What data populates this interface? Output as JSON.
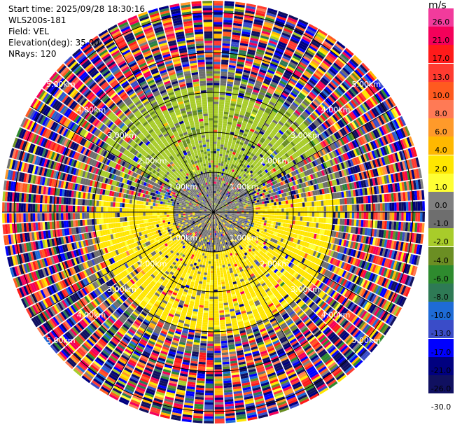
{
  "header": {
    "start_time": "Start time: 2025/09/28 18:30:16",
    "device": "WLS200s-181",
    "field": "Field: VEL",
    "elevation": "Elevation(deg): 35.00",
    "nrays": "NRays: 120"
  },
  "colorbar": {
    "unit": "m/s",
    "labels": [
      "26.0",
      "21.0",
      "17.0",
      "13.0",
      "10.0",
      "8.0",
      "6.0",
      "4.0",
      "2.0",
      "1.0",
      "0.0",
      "-1.0",
      "-2.0",
      "-4.0",
      "-6.0",
      "-8.0",
      "-10.0",
      "-13.0",
      "-17.0",
      "-21.0",
      "-26.0",
      "-30.0"
    ],
    "colors": [
      "#f23b9c",
      "#f5005a",
      "#ff1a1a",
      "#ff3b30",
      "#ff5a1f",
      "#ff7a55",
      "#ff9a2a",
      "#ffb800",
      "#ffe600",
      "#ffff33",
      "#808080",
      "#6e6e6e",
      "#a8cc2a",
      "#6b8e23",
      "#2e8b2e",
      "#2e7a55",
      "#1e6bd6",
      "#3a4cc8",
      "#0000ff",
      "#000080",
      "#101060"
    ]
  },
  "chart_data": {
    "type": "ppi",
    "field": "VEL",
    "unit": "m/s",
    "elevation_deg": 35.0,
    "n_rays": 120,
    "range_rings_km": [
      1.0,
      2.0,
      3.0,
      4.0,
      5.0
    ],
    "ring_labels": [
      "1.00km",
      "2.00km",
      "3.00km",
      "4.00km",
      "5.00km"
    ],
    "max_range_km": 5.3,
    "range_gates": 90,
    "value_regions": [
      {
        "azimuth_from": 300,
        "azimuth_to": 60,
        "range_km_from": 1.0,
        "range_km_to": 3.2,
        "value_range": [
          -2.0,
          -1.0
        ]
      },
      {
        "azimuth_from": 80,
        "azimuth_to": 280,
        "range_km_from": 0.5,
        "range_km_to": 3.0,
        "value_range": [
          2.0,
          4.0
        ]
      },
      {
        "azimuth_from": 0,
        "azimuth_to": 360,
        "range_km_from": 0.0,
        "range_km_to": 1.0,
        "value_range": [
          -1.0,
          1.0
        ]
      },
      {
        "azimuth_from": 0,
        "azimuth_to": 360,
        "range_km_from": 3.6,
        "range_km_to": 5.3,
        "value_range": [
          -30.0,
          26.0
        ]
      }
    ]
  }
}
